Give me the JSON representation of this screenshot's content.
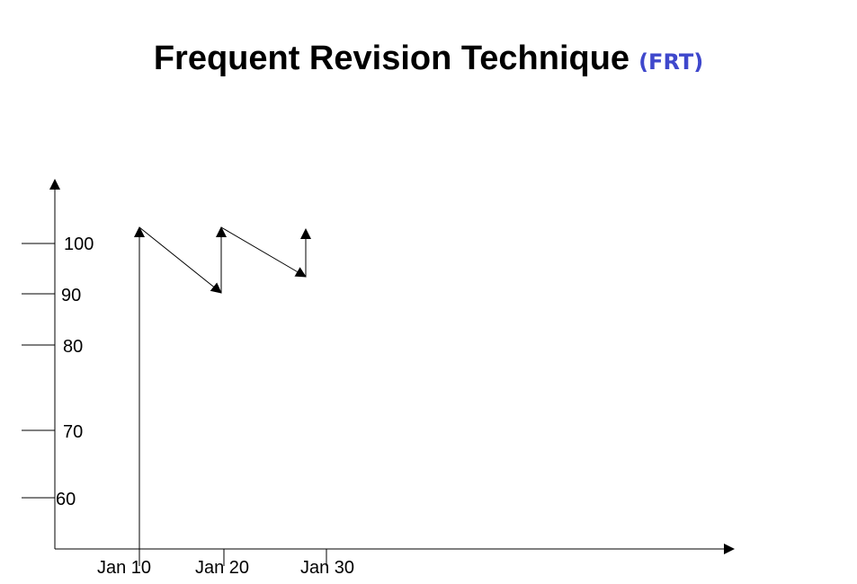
{
  "title": {
    "main": "Frequent Revision Technique",
    "abbr": "(FRT)",
    "abbr_color": "#3f48cc"
  },
  "chart_data": {
    "type": "line",
    "title": "Frequent Revision Technique (FRT)",
    "y_ticks": [
      100,
      90,
      80,
      70,
      60
    ],
    "x_ticks": [
      "Jan 10",
      "Jan 20",
      "Jan 30"
    ],
    "line_color": "#000000"
  }
}
